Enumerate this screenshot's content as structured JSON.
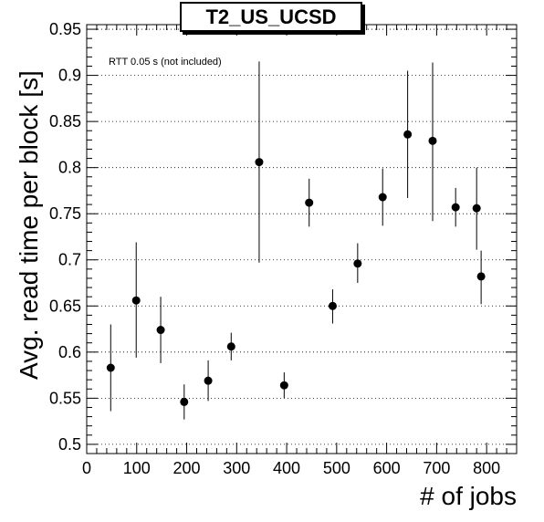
{
  "chart_data": {
    "type": "scatter",
    "title": "T2_US_UCSD",
    "xlabel": "# of jobs",
    "ylabel": "Avg. read time per block [s]",
    "annotation": "RTT 0.05 s (not included)",
    "xlim": [
      0,
      860
    ],
    "ylim": [
      0.49,
      0.955
    ],
    "x_ticks": [
      0,
      100,
      200,
      300,
      400,
      500,
      600,
      700,
      800
    ],
    "y_ticks": [
      0.5,
      0.55,
      0.6,
      0.65,
      0.7,
      0.75,
      0.8,
      0.85,
      0.9,
      0.95
    ],
    "x_tick_labels": [
      "0",
      "100",
      "200",
      "300",
      "400",
      "500",
      "600",
      "700",
      "800"
    ],
    "y_tick_labels": [
      "0.5",
      "0.55",
      "0.6",
      "0.65",
      "0.7",
      "0.75",
      "0.8",
      "0.85",
      "0.9",
      "0.95"
    ],
    "grid": "horizontal dotted",
    "points": [
      {
        "x": 48,
        "y": 0.583,
        "err_low": 0.536,
        "err_high": 0.63
      },
      {
        "x": 99,
        "y": 0.656,
        "err_low": 0.594,
        "err_high": 0.719
      },
      {
        "x": 148,
        "y": 0.624,
        "err_low": 0.588,
        "err_high": 0.66
      },
      {
        "x": 195,
        "y": 0.546,
        "err_low": 0.527,
        "err_high": 0.565
      },
      {
        "x": 243,
        "y": 0.569,
        "err_low": 0.547,
        "err_high": 0.591
      },
      {
        "x": 289,
        "y": 0.606,
        "err_low": 0.591,
        "err_high": 0.621
      },
      {
        "x": 345,
        "y": 0.806,
        "err_low": 0.697,
        "err_high": 0.915
      },
      {
        "x": 395,
        "y": 0.564,
        "err_low": 0.55,
        "err_high": 0.578
      },
      {
        "x": 445,
        "y": 0.762,
        "err_low": 0.736,
        "err_high": 0.788
      },
      {
        "x": 492,
        "y": 0.65,
        "err_low": 0.631,
        "err_high": 0.668
      },
      {
        "x": 542,
        "y": 0.696,
        "err_low": 0.675,
        "err_high": 0.718
      },
      {
        "x": 592,
        "y": 0.768,
        "err_low": 0.737,
        "err_high": 0.799
      },
      {
        "x": 642,
        "y": 0.836,
        "err_low": 0.767,
        "err_high": 0.905
      },
      {
        "x": 692,
        "y": 0.829,
        "err_low": 0.742,
        "err_high": 0.914
      },
      {
        "x": 738,
        "y": 0.757,
        "err_low": 0.736,
        "err_high": 0.778
      },
      {
        "x": 780,
        "y": 0.756,
        "err_low": 0.711,
        "err_high": 0.8
      },
      {
        "x": 789,
        "y": 0.682,
        "err_low": 0.652,
        "err_high": 0.71
      }
    ],
    "marker_color": "#000000"
  }
}
